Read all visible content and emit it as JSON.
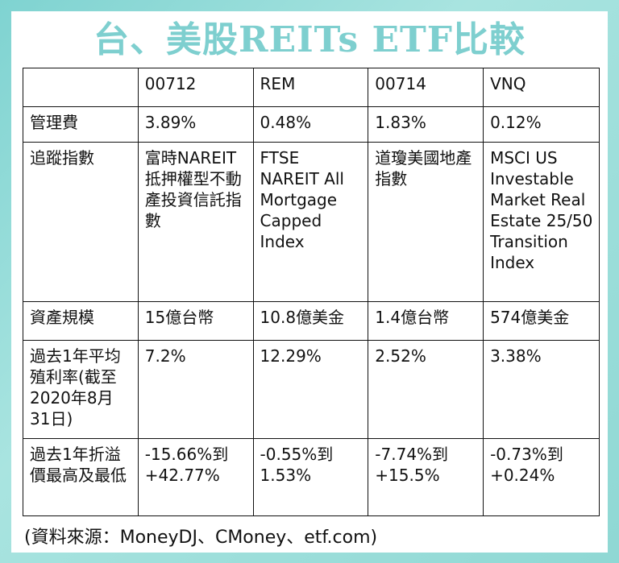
{
  "title": "台、美股REITs ETF比較",
  "table": {
    "header": [
      "",
      "00712",
      "REM",
      "00714",
      "VNQ"
    ],
    "rows": [
      {
        "label": "管理費",
        "values": [
          "3.89%",
          "0.48%",
          "1.83%",
          "0.12%"
        ]
      },
      {
        "label": "追蹤指數",
        "values": [
          "富時NAREIT抵押權型不動產投資信託指數",
          "FTSE NAREIT All Mortgage Capped Index",
          "道瓊美國地產指數",
          "MSCI US Investable Market Real Estate 25/50 Transition Index"
        ]
      },
      {
        "label": "資產規模",
        "values": [
          "15億台幣",
          "10.8億美金",
          "1.4億台幣",
          "574億美金"
        ]
      },
      {
        "label": "過去1年平均殖利率(截至2020年8月31日)",
        "values": [
          "7.2%",
          "12.29%",
          "2.52%",
          "3.38%"
        ]
      },
      {
        "label": "過去1年折溢價最高及最低",
        "values": [
          "-15.66%到+42.77%",
          "-0.55%到1.53%",
          "-7.74%到+15.5%",
          "-0.73%到+0.24%"
        ]
      }
    ]
  },
  "source": "(資料來源：MoneyDJ、CMoney、etf.com)"
}
